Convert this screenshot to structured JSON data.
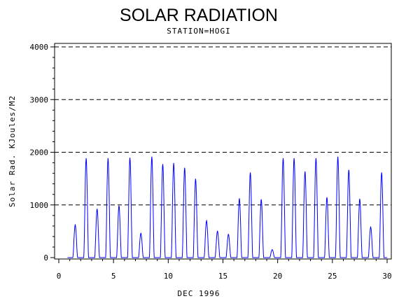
{
  "chart_data": {
    "type": "line",
    "title": "SOLAR RADIATION",
    "subtitle": "STATION=HOGI",
    "xlabel": "DEC 1996",
    "ylabel": "Solar Rad. KJoules/M2",
    "xlim": [
      0,
      30
    ],
    "ylim": [
      0,
      4000
    ],
    "xticks": [
      "0",
      "5",
      "10",
      "15",
      "20",
      "25",
      "30"
    ],
    "yticks": [
      "0",
      "1000",
      "2000",
      "3000",
      "4000"
    ],
    "grid": "horizontal-dashed",
    "series_color": "#0000ff",
    "daily_peaks": [
      {
        "day": 1,
        "peak": 620
      },
      {
        "day": 2,
        "peak": 1880
      },
      {
        "day": 3,
        "peak": 920
      },
      {
        "day": 4,
        "peak": 1880
      },
      {
        "day": 5,
        "peak": 980
      },
      {
        "day": 6,
        "peak": 1890
      },
      {
        "day": 7,
        "peak": 460
      },
      {
        "day": 8,
        "peak": 1910
      },
      {
        "day": 9,
        "peak": 1770
      },
      {
        "day": 10,
        "peak": 1790
      },
      {
        "day": 11,
        "peak": 1700
      },
      {
        "day": 12,
        "peak": 1490
      },
      {
        "day": 13,
        "peak": 700
      },
      {
        "day": 14,
        "peak": 500
      },
      {
        "day": 15,
        "peak": 440
      },
      {
        "day": 16,
        "peak": 1120
      },
      {
        "day": 17,
        "peak": 1610
      },
      {
        "day": 18,
        "peak": 1100
      },
      {
        "day": 19,
        "peak": 150
      },
      {
        "day": 20,
        "peak": 1880
      },
      {
        "day": 21,
        "peak": 1880
      },
      {
        "day": 22,
        "peak": 1630
      },
      {
        "day": 23,
        "peak": 1880
      },
      {
        "day": 24,
        "peak": 1140
      },
      {
        "day": 25,
        "peak": 1910
      },
      {
        "day": 26,
        "peak": 1660
      },
      {
        "day": 27,
        "peak": 1110
      },
      {
        "day": 28,
        "peak": 580
      },
      {
        "day": 29,
        "peak": 1610
      }
    ]
  }
}
